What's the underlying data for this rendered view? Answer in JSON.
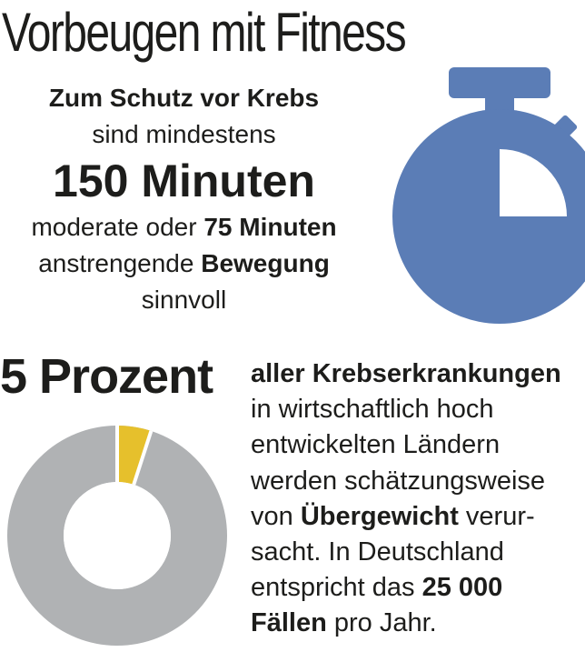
{
  "title": "Vorbeugen mit Fitness",
  "intro": {
    "line1": "Zum Schutz vor Krebs",
    "line2": "sind mindestens",
    "line3": "150 Minuten",
    "line4_pre": "moderate oder ",
    "line4_bold": "75 Minuten",
    "line5_pre": "anstrengende ",
    "line5_bold": "Bewegung",
    "line6": "sinnvoll"
  },
  "stat": {
    "value": "5 Prozent",
    "percent": 5,
    "lines": {
      "l1_bold": "aller Krebserkrankungen",
      "l2": "in wirtschaftlich hoch",
      "l3": "entwickelten Ländern",
      "l4": "werden schätzungsweise",
      "l5_pre": "von ",
      "l5_bold": "Übergewicht",
      "l5_post": " verur-",
      "l6": "sacht. In Deutschland",
      "l7_pre": "entspricht das ",
      "l7_bold": "25 000",
      "l8_bold": "Fällen",
      "l8_post": " pro Jahr."
    }
  },
  "colors": {
    "stopwatch": "#5b7db6",
    "donut_rest": "#b0b2b4",
    "donut_highlight": "#e6c02c",
    "text": "#1d1d1b"
  },
  "icons": {
    "stopwatch": "stopwatch-icon",
    "donut": "donut-chart"
  }
}
